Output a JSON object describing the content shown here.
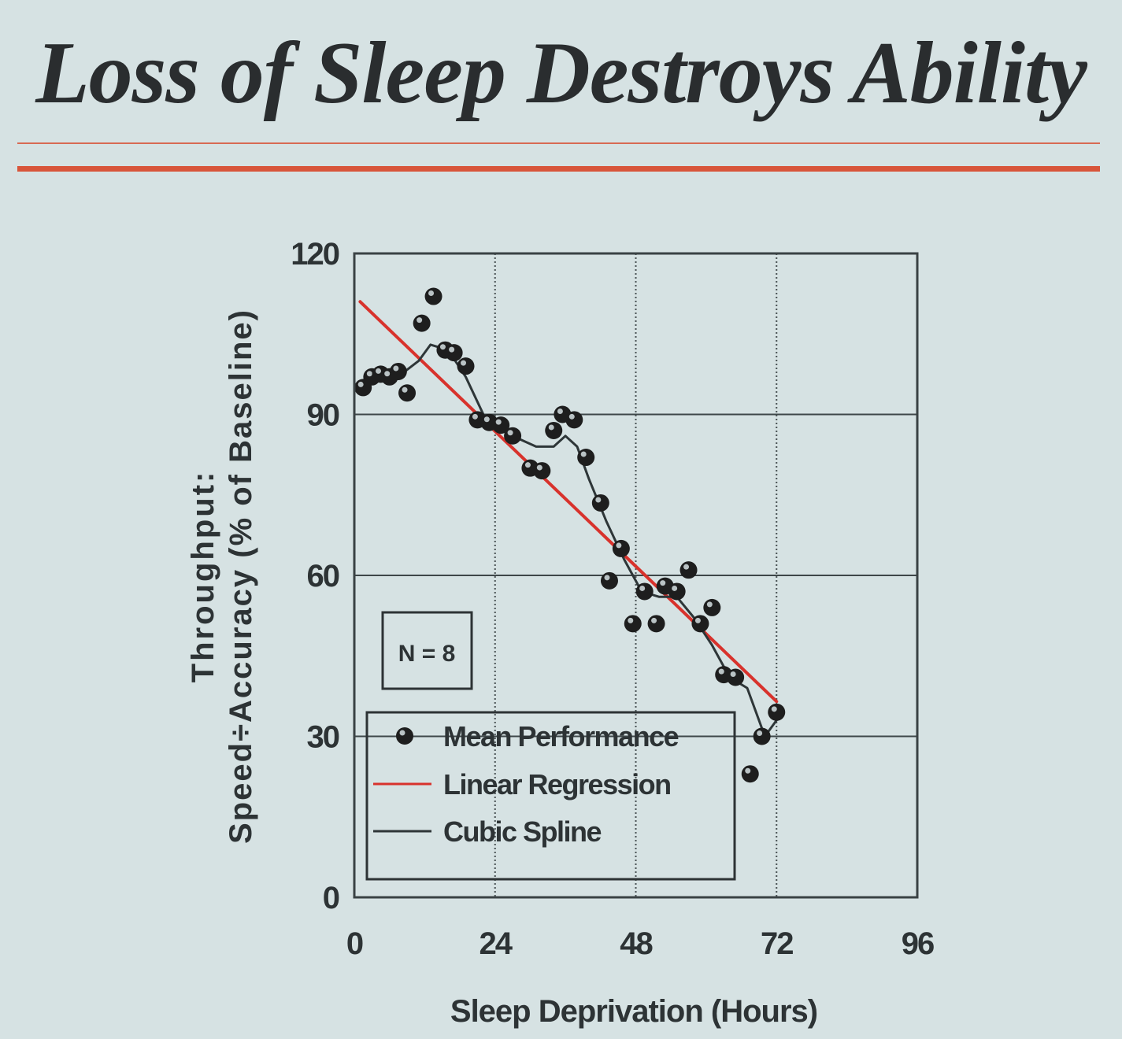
{
  "slide": {
    "title": "Loss of Sleep Destroys Ability"
  },
  "chart_data": {
    "type": "scatter",
    "xlabel": "Sleep Deprivation (Hours)",
    "ylabel_line1": "Throughput:",
    "ylabel_line2": "Speed÷Accuracy (% of Baseline)",
    "xlim": [
      0,
      96
    ],
    "ylim": [
      0,
      120
    ],
    "x_ticks": [
      0,
      24,
      48,
      72,
      96
    ],
    "y_ticks": [
      0,
      30,
      60,
      90,
      120
    ],
    "grid": true,
    "annotation": "N = 8",
    "legend_position": "bottom-left",
    "series": [
      {
        "name": "Mean Performance",
        "kind": "points",
        "color": "#1e1e1e",
        "points": [
          [
            1.5,
            95
          ],
          [
            3,
            97
          ],
          [
            4.5,
            97.5
          ],
          [
            6,
            97
          ],
          [
            7.5,
            98
          ],
          [
            9,
            94
          ],
          [
            11.5,
            107
          ],
          [
            13.5,
            112
          ],
          [
            15.5,
            102
          ],
          [
            17,
            101.5
          ],
          [
            19,
            99
          ],
          [
            21,
            89
          ],
          [
            23,
            88.5
          ],
          [
            25,
            88
          ],
          [
            27,
            86
          ],
          [
            30,
            80
          ],
          [
            32,
            79.5
          ],
          [
            34,
            87
          ],
          [
            35.5,
            90
          ],
          [
            37.5,
            89
          ],
          [
            39.5,
            82
          ],
          [
            42,
            73.5
          ],
          [
            43.5,
            59
          ],
          [
            45.5,
            65
          ],
          [
            47.5,
            51
          ],
          [
            49.5,
            57
          ],
          [
            51.5,
            51
          ],
          [
            53,
            58
          ],
          [
            55,
            57
          ],
          [
            57,
            61
          ],
          [
            59,
            51
          ],
          [
            61,
            54
          ],
          [
            63,
            41.5
          ],
          [
            65,
            41
          ],
          [
            67.5,
            23
          ],
          [
            69.5,
            30
          ],
          [
            72,
            34.5
          ]
        ]
      },
      {
        "name": "Linear Regression",
        "kind": "line",
        "color": "#d8322c",
        "x": [
          1,
          72
        ],
        "y": [
          111,
          36.5
        ]
      },
      {
        "name": "Cubic Spline",
        "kind": "line",
        "color": "#2e3638",
        "x": [
          1,
          4,
          8,
          11,
          13,
          16,
          19,
          22,
          25,
          28,
          31,
          34,
          36,
          38,
          40,
          43,
          46,
          49,
          52,
          55,
          58,
          61,
          64,
          67,
          70,
          72
        ],
        "y": [
          96,
          97,
          97.5,
          100,
          103,
          102,
          97,
          90,
          88,
          85.5,
          84,
          84,
          86,
          84,
          78,
          70,
          63,
          57,
          56,
          56,
          52,
          47,
          41,
          39,
          30,
          33
        ]
      }
    ]
  }
}
